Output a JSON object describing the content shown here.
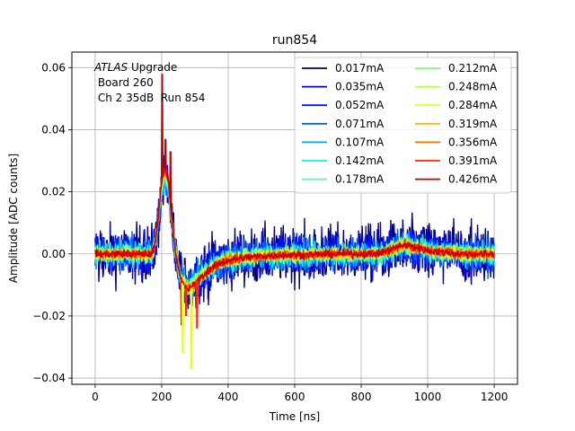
{
  "chart_data": {
    "type": "line",
    "title": "run854",
    "xlabel": "Time [ns]",
    "ylabel": "Amplitude [ADC counts]",
    "xlim": [
      -70,
      1270
    ],
    "ylim": [
      -0.042,
      0.065
    ],
    "xticks": [
      0,
      200,
      400,
      600,
      800,
      1000,
      1200
    ],
    "yticks": [
      -0.04,
      -0.02,
      0.0,
      0.02,
      0.04,
      0.06
    ],
    "ytick_labels": [
      "−0.04",
      "−0.02",
      "0.00",
      "0.02",
      "0.04",
      "0.06"
    ],
    "grid": true,
    "legend_placement": "upper right",
    "legend_columns": 2,
    "annotation": {
      "line1_italic": "ATLAS",
      "line1_rest": " Upgrade",
      "line2": " Board 260",
      "line3": " Ch 2 35dB  Run 854"
    },
    "series": [
      {
        "name": "0.017mA",
        "color": "#00007f",
        "noise": 0.0065
      },
      {
        "name": "0.035mA",
        "color": "#0000c8",
        "noise": 0.0055
      },
      {
        "name": "0.052mA",
        "color": "#0014ff",
        "noise": 0.0045
      },
      {
        "name": "0.071mA",
        "color": "#0060ff",
        "noise": 0.0038
      },
      {
        "name": "0.107mA",
        "color": "#00a8ff",
        "noise": 0.003
      },
      {
        "name": "0.142mA",
        "color": "#10f0e6",
        "noise": 0.0025
      },
      {
        "name": "0.178mA",
        "color": "#46ffb1",
        "noise": 0.0021
      },
      {
        "name": "0.212mA",
        "color": "#7dff7a",
        "noise": 0.0018
      },
      {
        "name": "0.248mA",
        "color": "#b1ff46",
        "noise": 0.0016
      },
      {
        "name": "0.284mA",
        "color": "#e6ff10",
        "noise": 0.0014
      },
      {
        "name": "0.319mA",
        "color": "#ffb900",
        "noise": 0.0012
      },
      {
        "name": "0.356mA",
        "color": "#ff7300",
        "noise": 0.0011
      },
      {
        "name": "0.391mA",
        "color": "#ff2900",
        "noise": 0.001
      },
      {
        "name": "0.426mA",
        "color": "#c80000",
        "noise": 0.0009
      }
    ],
    "pulse_shape": {
      "x": [
        0,
        170,
        180,
        190,
        200,
        210,
        220,
        230,
        240,
        250,
        260,
        270,
        280,
        290,
        300,
        320,
        340,
        360,
        380,
        400,
        450,
        500,
        550,
        600,
        650,
        700,
        750,
        800,
        850,
        880,
        900,
        930,
        950,
        1000,
        1100,
        1200
      ],
      "y": [
        0,
        0,
        0.003,
        0.012,
        0.024,
        0.028,
        0.024,
        0.012,
        0.002,
        -0.005,
        -0.009,
        -0.011,
        -0.0115,
        -0.011,
        -0.0095,
        -0.0075,
        -0.0055,
        -0.004,
        -0.0028,
        -0.002,
        -0.0012,
        -0.0007,
        -0.0004,
        -0.0003,
        -0.0002,
        -0.0001,
        0,
        0,
        0,
        0.001,
        0.002,
        0.003,
        0.0025,
        0.001,
        0,
        0
      ]
    },
    "spikes": [
      {
        "x": 200,
        "y": 0.058
      },
      {
        "x": 210,
        "y": 0.037
      },
      {
        "x": 225,
        "y": 0.033
      },
      {
        "x": 258,
        "y": -0.023
      },
      {
        "x": 262,
        "y": -0.032
      },
      {
        "x": 272,
        "y": -0.02
      },
      {
        "x": 288,
        "y": -0.037
      },
      {
        "x": 305,
        "y": -0.024
      }
    ]
  }
}
